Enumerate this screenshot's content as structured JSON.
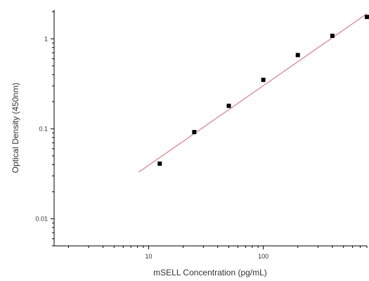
{
  "chart_data": {
    "type": "scatter",
    "xlabel": "mSELL Concentration (pg/mL)",
    "ylabel": "Optical Density (450nm)",
    "x_scale": "log",
    "y_scale": "log",
    "xlim": [
      1.5,
      800
    ],
    "ylim": [
      0.005,
      2.1
    ],
    "x_ticks": [
      {
        "value": 10,
        "label": "10"
      },
      {
        "value": 100,
        "label": "100"
      }
    ],
    "y_ticks": [
      {
        "value": 0.01,
        "label": "0.01"
      },
      {
        "value": 0.1,
        "label": "0.1"
      },
      {
        "value": 1,
        "label": "1"
      }
    ],
    "grid": false,
    "series": [
      {
        "type": "scatter",
        "color": "#000000",
        "points": [
          {
            "x": 12.5,
            "y": 0.041
          },
          {
            "x": 25,
            "y": 0.092
          },
          {
            "x": 50,
            "y": 0.18
          },
          {
            "x": 100,
            "y": 0.35
          },
          {
            "x": 200,
            "y": 0.66
          },
          {
            "x": 400,
            "y": 1.08
          },
          {
            "x": 800,
            "y": 1.75
          }
        ]
      },
      {
        "type": "line",
        "color": "#d2697a",
        "points": [
          {
            "x": 8.2,
            "y": 0.033
          },
          {
            "x": 800,
            "y": 1.9
          }
        ]
      }
    ]
  }
}
